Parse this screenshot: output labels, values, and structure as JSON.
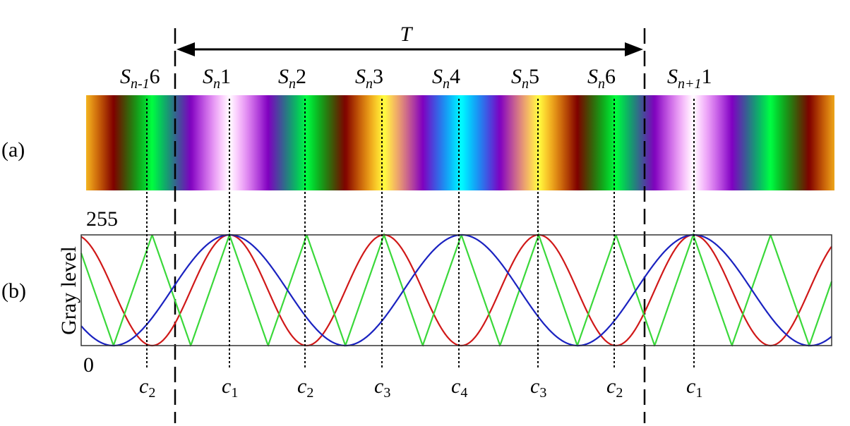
{
  "period_label": "T",
  "panel_a": {
    "label": "(a)",
    "stripe_labels": [
      {
        "letter": "S",
        "sub": "n-1",
        "index": "6"
      },
      {
        "letter": "S",
        "sub": "n",
        "index": "1"
      },
      {
        "letter": "S",
        "sub": "n",
        "index": "2"
      },
      {
        "letter": "S",
        "sub": "n",
        "index": "3"
      },
      {
        "letter": "S",
        "sub": "n",
        "index": "4"
      },
      {
        "letter": "S",
        "sub": "n",
        "index": "5"
      },
      {
        "letter": "S",
        "sub": "n",
        "index": "6"
      },
      {
        "letter": "S",
        "sub": "n+1",
        "index": "1"
      }
    ]
  },
  "panel_b": {
    "label": "(b)",
    "y_axis_label": "Gray level",
    "y_max_label": "255",
    "y_min_label": "0",
    "code_labels": [
      {
        "letter": "c",
        "sub": "2"
      },
      {
        "letter": "c",
        "sub": "1"
      },
      {
        "letter": "c",
        "sub": "2"
      },
      {
        "letter": "c",
        "sub": "3"
      },
      {
        "letter": "c",
        "sub": "4"
      },
      {
        "letter": "c",
        "sub": "3"
      },
      {
        "letter": "c",
        "sub": "2"
      },
      {
        "letter": "c",
        "sub": "1"
      }
    ]
  }
}
